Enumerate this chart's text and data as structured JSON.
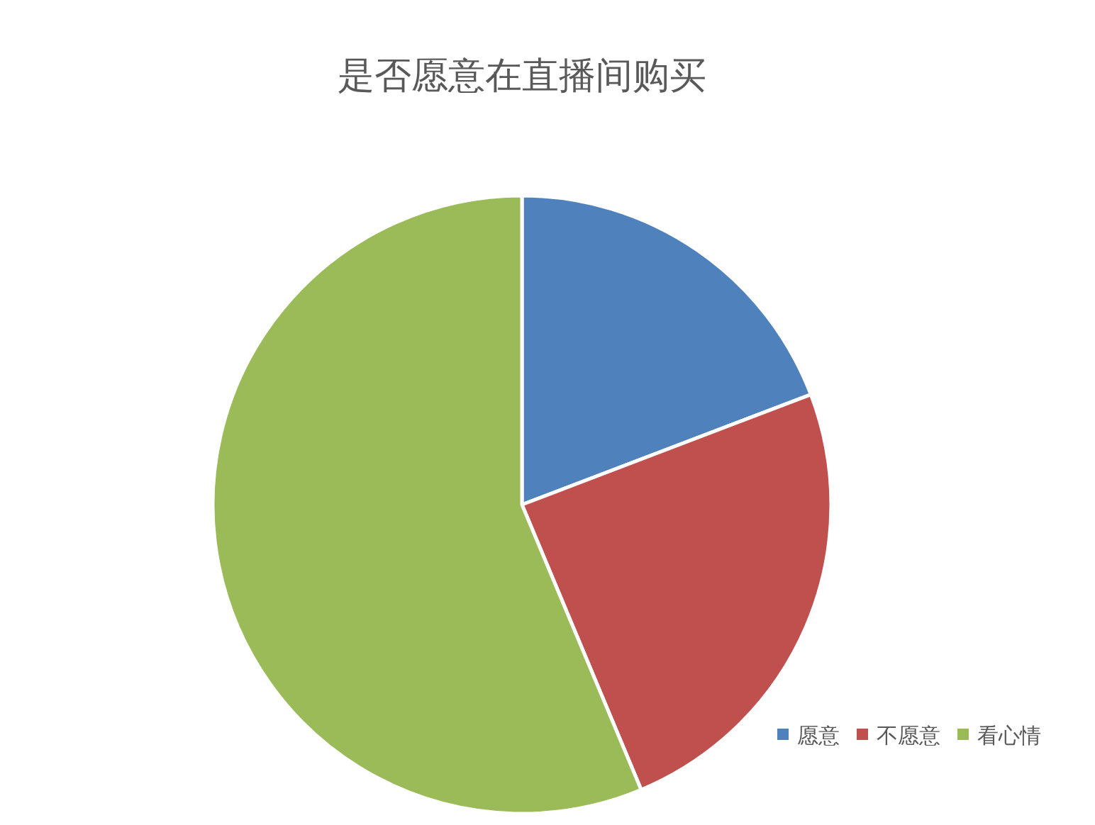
{
  "chart_data": {
    "type": "pie",
    "title": "是否愿意在直播间购买",
    "categories": [
      "愿意",
      "不愿意",
      "看心情"
    ],
    "values": [
      19.2,
      24.5,
      56.3
    ],
    "colors": [
      "#4f81bd",
      "#c0504d",
      "#9bbb59"
    ],
    "legend": "bottom right"
  }
}
